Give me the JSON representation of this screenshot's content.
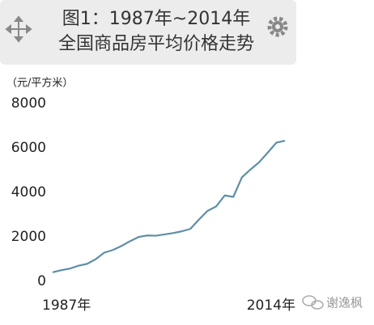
{
  "chart_data": {
    "type": "line",
    "title": [
      "图1：1987年~2014年",
      "全国商品房平均价格走势"
    ],
    "ylabel": "（元/平方米）",
    "categories": [
      "1987年",
      null,
      null,
      null,
      null,
      null,
      null,
      null,
      null,
      null,
      null,
      null,
      null,
      null,
      null,
      null,
      null,
      null,
      null,
      null,
      null,
      null,
      null,
      null,
      null,
      null,
      null,
      "2014年"
    ],
    "series": [
      {
        "color": "#5d8fa6",
        "values": [
          408,
          503,
          573,
          703,
          786,
          995,
          1291,
          1409,
          1591,
          1806,
          1997,
          2063,
          2053,
          2112,
          2170,
          2250,
          2359,
          2778,
          3168,
          3367,
          3864,
          3800,
          4681,
          5032,
          5357,
          5791,
          6237,
          6324
        ]
      }
    ],
    "ylim": [
      0,
      8000
    ],
    "yticks": [
      0,
      2000,
      4000,
      6000,
      8000
    ],
    "grid": false
  },
  "watermark": "谢逸枫"
}
